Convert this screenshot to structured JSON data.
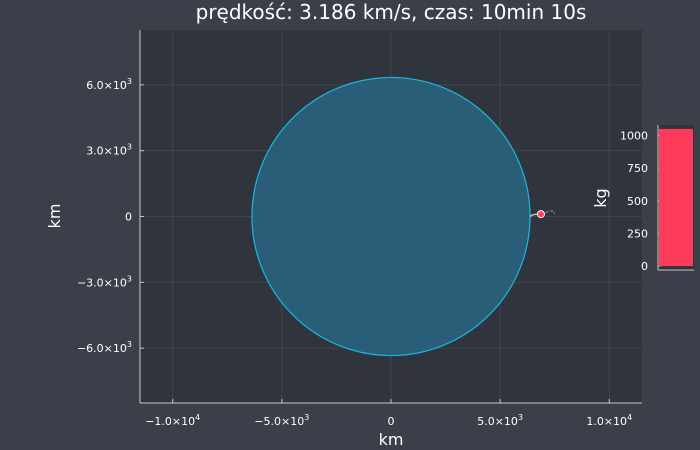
{
  "chart_data": [
    {
      "type": "scatter",
      "title": "prędkość: 3.186 km/s, czas: 10min 10s",
      "xlabel": "km",
      "ylabel": "km",
      "xlim": [
        -11500,
        11500
      ],
      "ylim": [
        -8500,
        8500
      ],
      "aspect": "equal",
      "grid": true,
      "x_ticks": [
        {
          "value": -10000,
          "mantissa": "−1.0×10",
          "exp": "4"
        },
        {
          "value": -5000,
          "mantissa": "−5.0×10",
          "exp": "3"
        },
        {
          "value": 0,
          "mantissa": "0",
          "exp": ""
        },
        {
          "value": 5000,
          "mantissa": "5.0×10",
          "exp": "3"
        },
        {
          "value": 10000,
          "mantissa": "1.0×10",
          "exp": "4"
        }
      ],
      "y_ticks": [
        {
          "value": 6000,
          "mantissa": "6.0×10",
          "exp": "3"
        },
        {
          "value": 3000,
          "mantissa": "3.0×10",
          "exp": "3"
        },
        {
          "value": 0,
          "mantissa": "0",
          "exp": ""
        },
        {
          "value": -3000,
          "mantissa": "−3.0×10",
          "exp": "3"
        },
        {
          "value": -6000,
          "mantissa": "−6.0×10",
          "exp": "3"
        }
      ],
      "planet": {
        "center": [
          0,
          0
        ],
        "radius": 6371,
        "fill_color": "#2a5e78",
        "edge_color": "#1ab8e0"
      },
      "trajectory": [
        [
          6371,
          0
        ],
        [
          6450,
          60
        ],
        [
          6600,
          100
        ],
        [
          6750,
          110
        ],
        [
          6870,
          110
        ]
      ],
      "predicted_path": [
        [
          6870,
          110
        ],
        [
          7100,
          190
        ],
        [
          7350,
          260
        ],
        [
          7500,
          230
        ],
        [
          7480,
          130
        ]
      ],
      "rocket_position": [
        6870,
        110
      ],
      "rocket_color": "#ff3b5c",
      "trajectory_color": "#e0e0e0"
    },
    {
      "type": "bar",
      "ylabel": "kg",
      "ylim": [
        -30,
        1080
      ],
      "y_ticks": [
        0,
        250,
        500,
        750,
        1000
      ],
      "values": [
        1050
      ],
      "bar_color": "#ff3b5c"
    }
  ]
}
